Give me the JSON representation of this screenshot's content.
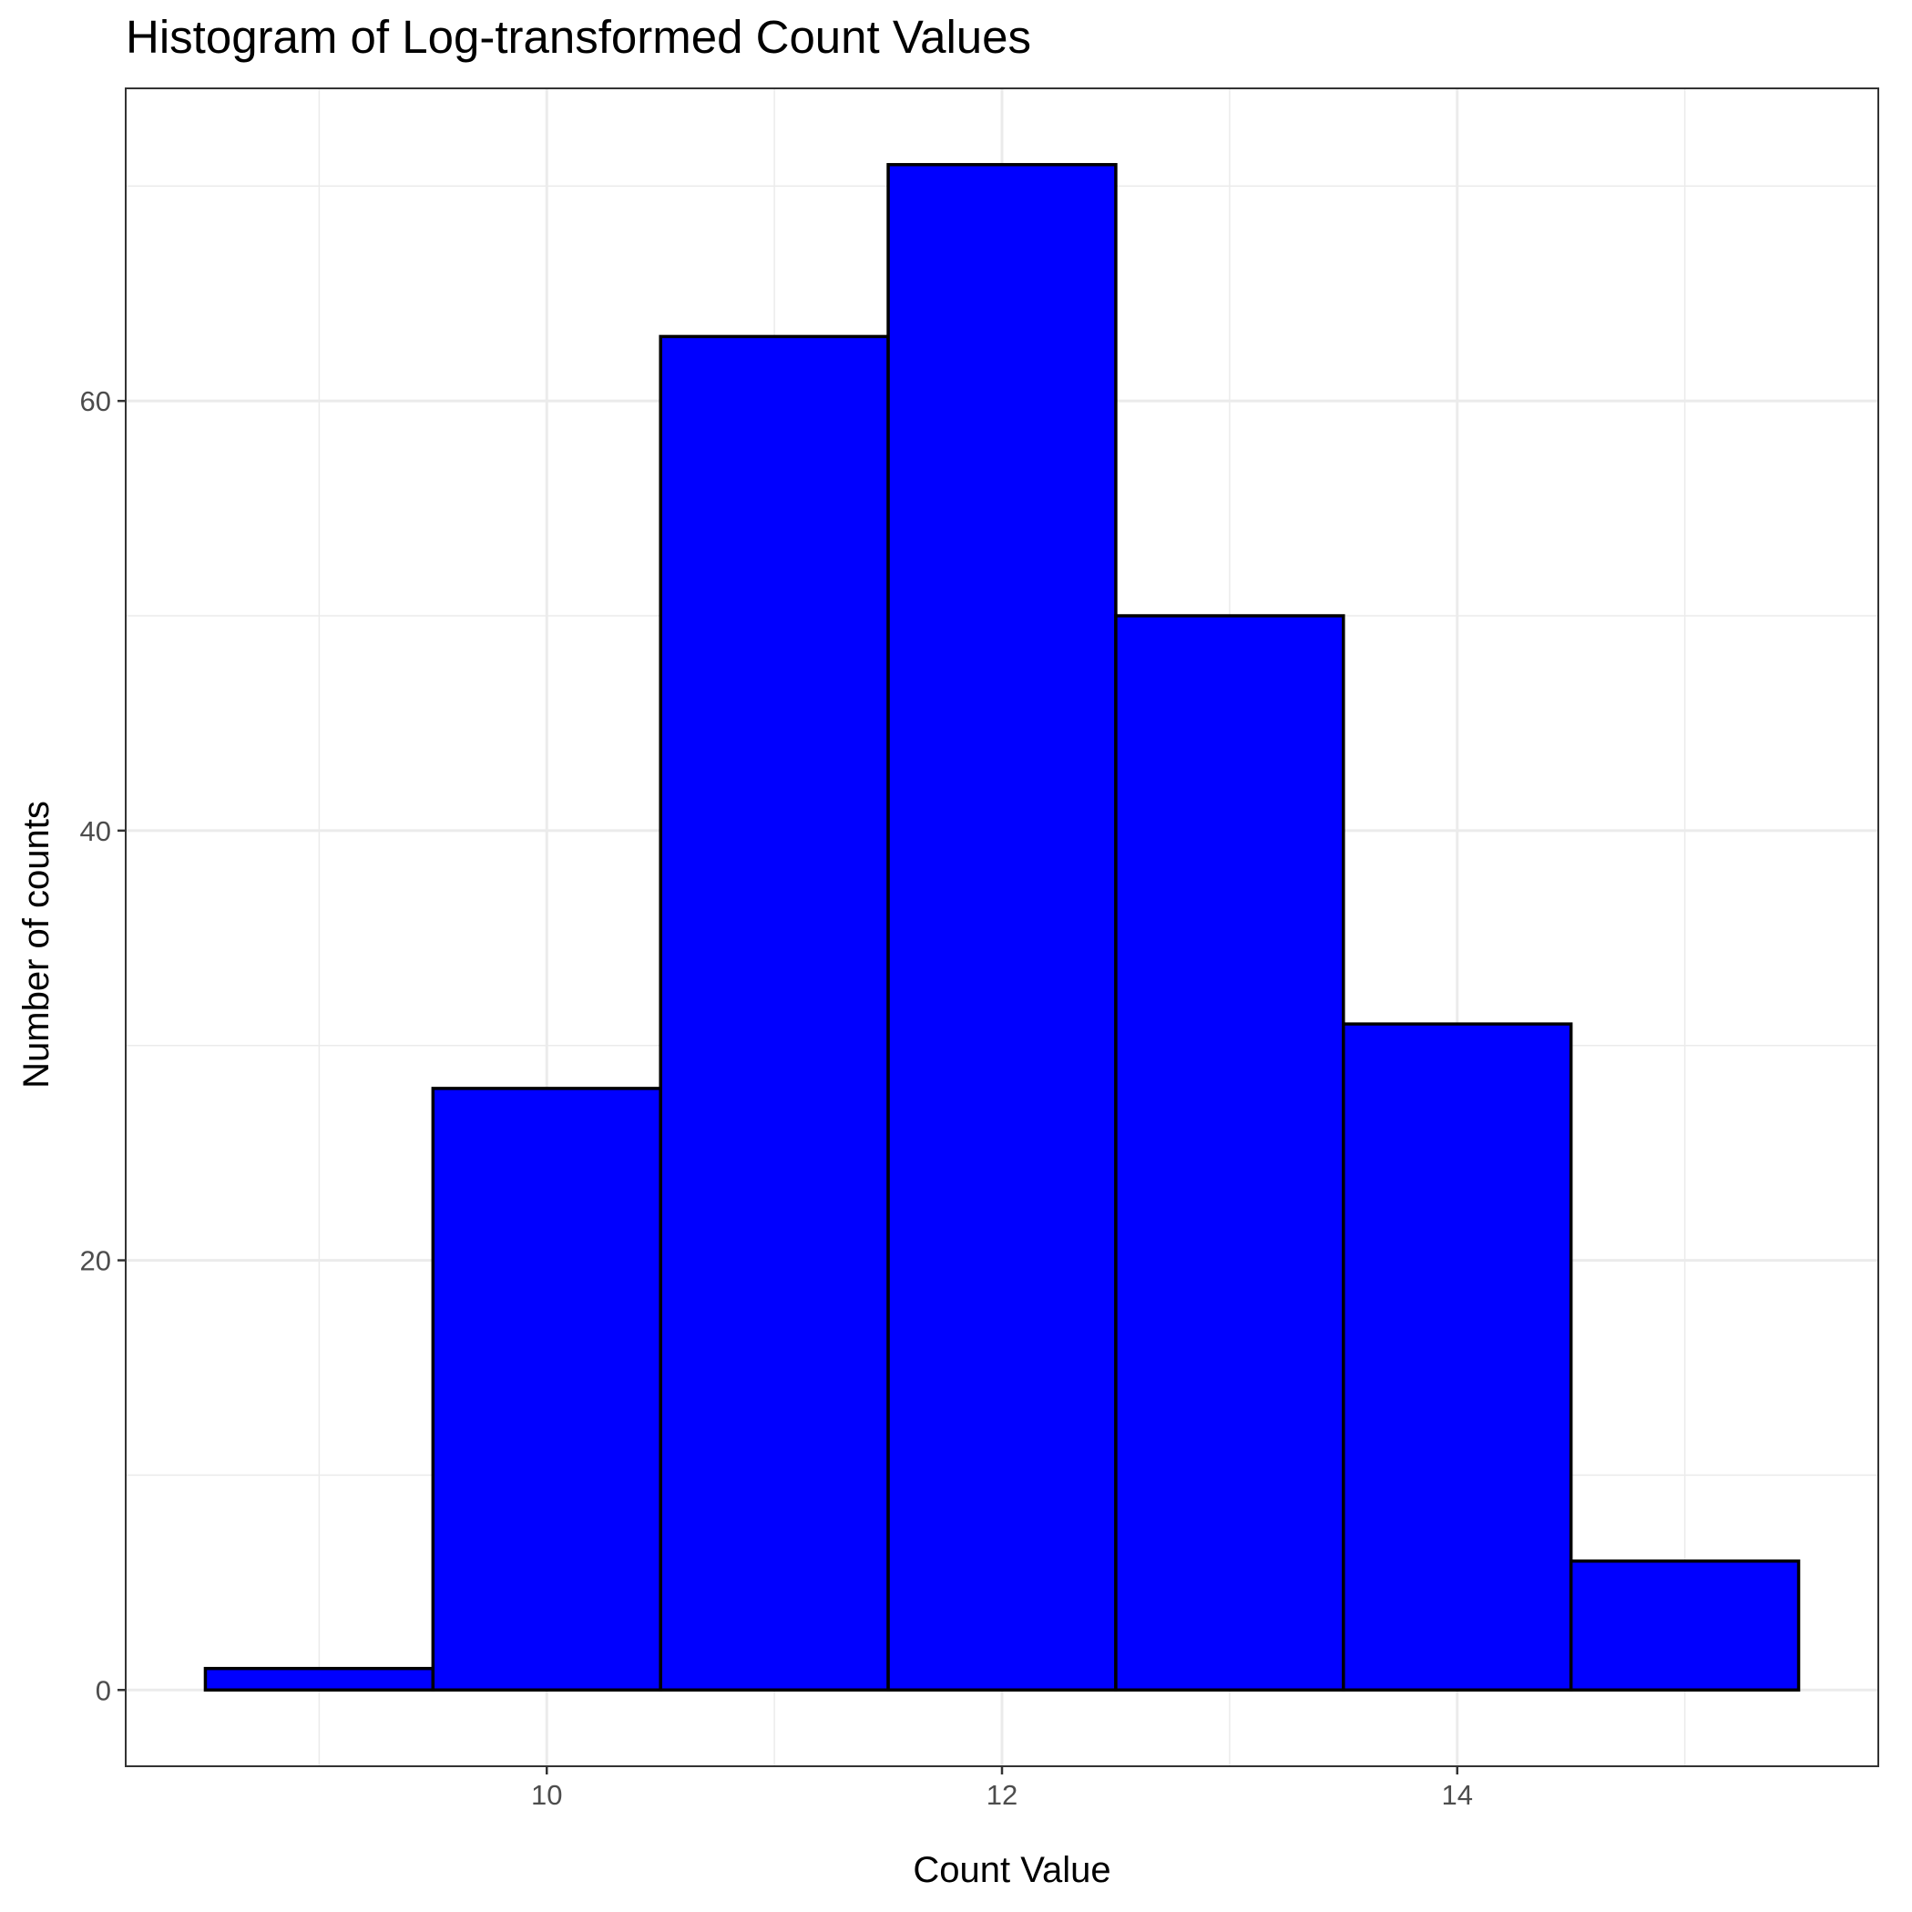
{
  "chart_data": {
    "type": "bar",
    "subtype": "histogram",
    "title": "Histogram of Log-transformed Count Values",
    "xlabel": "Count Value",
    "ylabel": "Number of counts",
    "bins": [
      {
        "start": 8.5,
        "end": 9.5,
        "count": 1
      },
      {
        "start": 9.5,
        "end": 10.5,
        "count": 28
      },
      {
        "start": 10.5,
        "end": 11.5,
        "count": 63
      },
      {
        "start": 11.5,
        "end": 12.5,
        "count": 71
      },
      {
        "start": 12.5,
        "end": 13.5,
        "count": 50
      },
      {
        "start": 13.5,
        "end": 14.5,
        "count": 31
      },
      {
        "start": 14.5,
        "end": 15.5,
        "count": 6
      }
    ],
    "xlim": [
      8.15,
      15.85
    ],
    "ylim": [
      -3.55,
      74.55
    ],
    "x_ticks": [
      10,
      12,
      14
    ],
    "x_tick_labels": [
      "10",
      "12",
      "14"
    ],
    "x_minor": [
      9,
      11,
      13,
      15
    ],
    "y_ticks": [
      0,
      20,
      40,
      60
    ],
    "y_tick_labels": [
      "0",
      "20",
      "40",
      "60"
    ],
    "y_minor": [
      10,
      30,
      50,
      70
    ],
    "grid": true,
    "legend": "none",
    "colors": {
      "fill": "#0000ff",
      "outline": "#000000"
    }
  }
}
